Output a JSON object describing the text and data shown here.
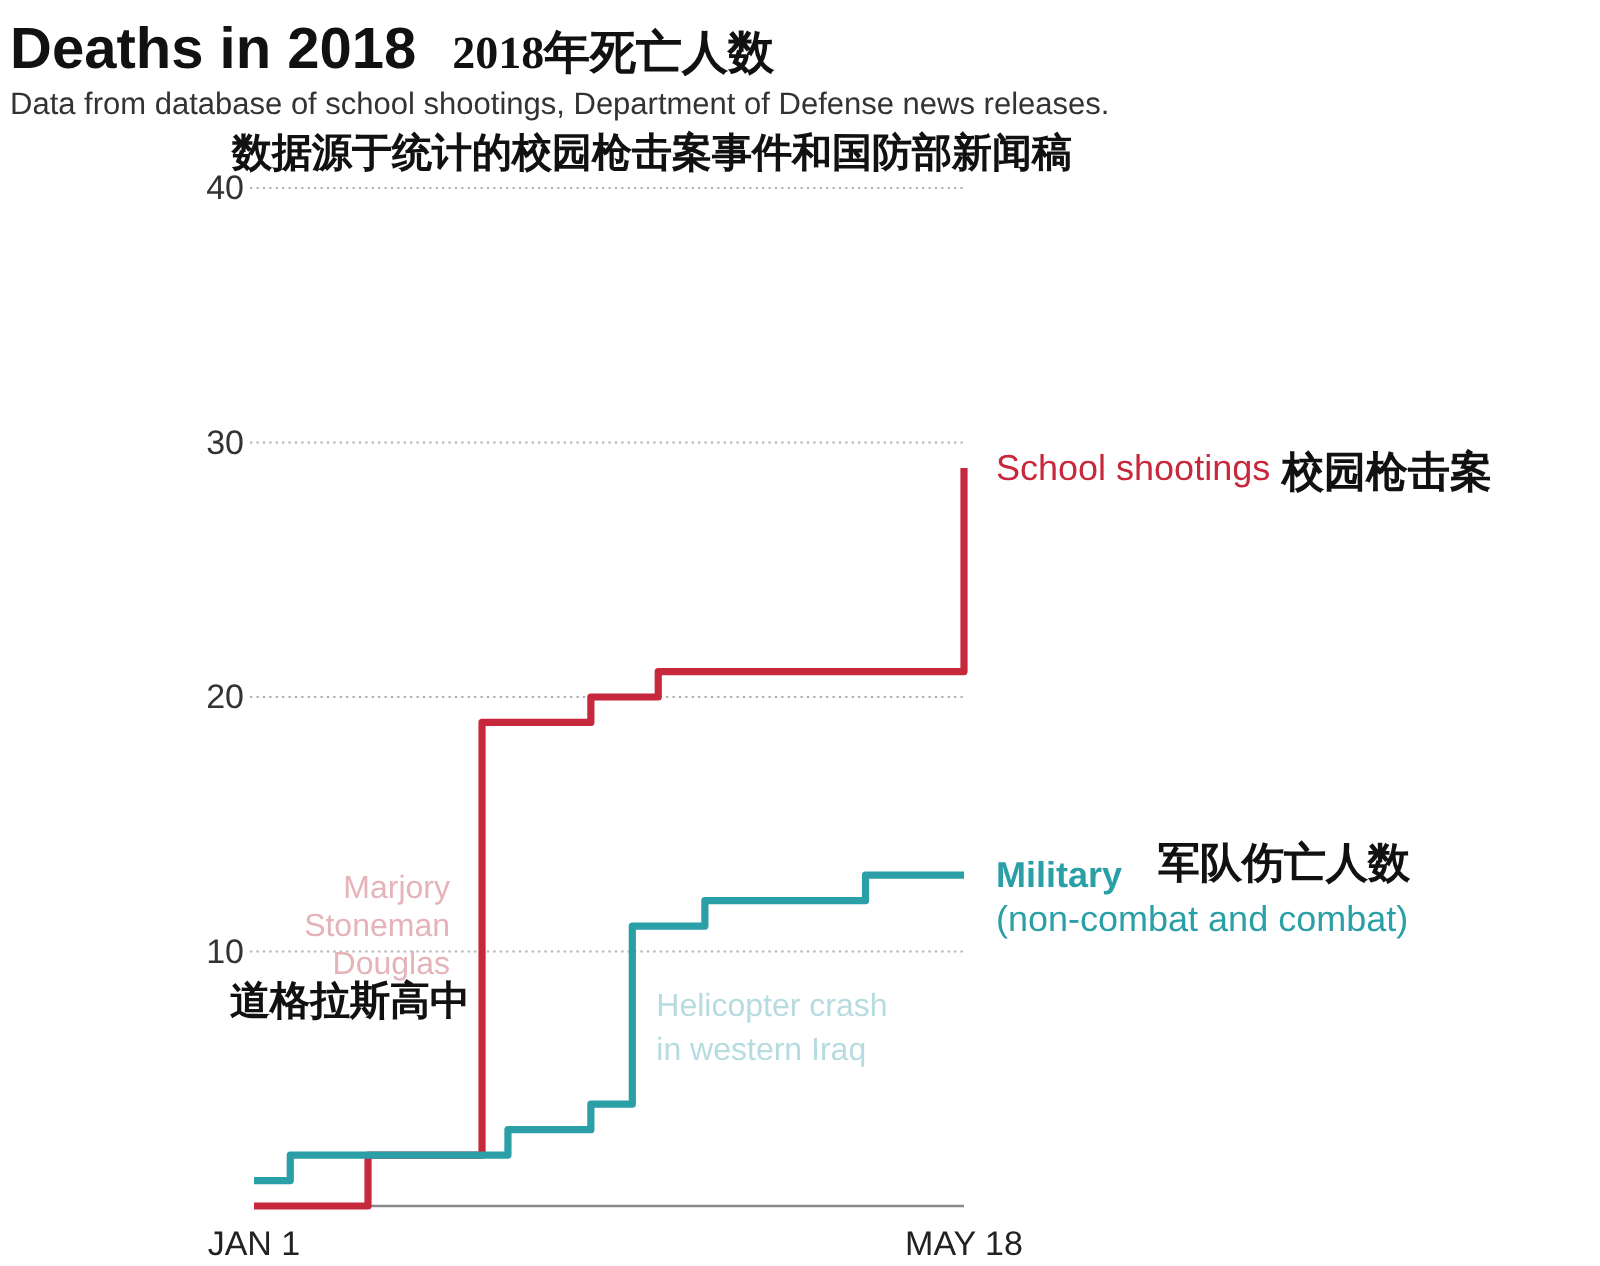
{
  "chart_data": {
    "type": "step",
    "title": "Deaths in 2018",
    "subtitle": "Data from database of school shootings, Department of Defense news releases.",
    "series": [
      {
        "name": "School shootings",
        "color": "#c8283c",
        "x": [
          "2018-01-01",
          "2018-01-23",
          "2018-02-14",
          "2018-03-07",
          "2018-03-20",
          "2018-05-18"
        ],
        "values": [
          0,
          2,
          19,
          20,
          21,
          29
        ]
      },
      {
        "name": "Military\n(non-combat and combat)",
        "color": "#2a9fa6",
        "x": [
          "2018-01-01",
          "2018-01-08",
          "2018-02-19",
          "2018-03-07",
          "2018-03-15",
          "2018-03-29",
          "2018-04-29",
          "2018-05-18"
        ],
        "values": [
          1,
          2,
          3,
          4,
          11,
          12,
          13,
          13
        ]
      }
    ],
    "xlim": [
      "2018-01-01",
      "2018-05-18"
    ],
    "xticks": [
      {
        "value": "2018-01-01",
        "label": "JAN 1"
      },
      {
        "value": "2018-05-18",
        "label": "MAY 18"
      }
    ],
    "ylim": [
      0,
      40
    ],
    "yticks": [
      10,
      20,
      30,
      40
    ],
    "grid": "y",
    "annotations": [
      "2018年死亡人数",
      "数据源于统计的校园枪击案事件和国防部新闻稿",
      {
        "text": "Marjory\nStoneman\nDouglas",
        "x": "2018-02-14",
        "y": 11
      },
      {
        "text": "道格拉斯高中",
        "x": "2018-02-14",
        "y": 8
      },
      {
        "text": "Helicopter crash\nin western Iraq",
        "x": "2018-03-15",
        "y": 7
      },
      "校园枪击案",
      "军队伤亡人数"
    ]
  }
}
